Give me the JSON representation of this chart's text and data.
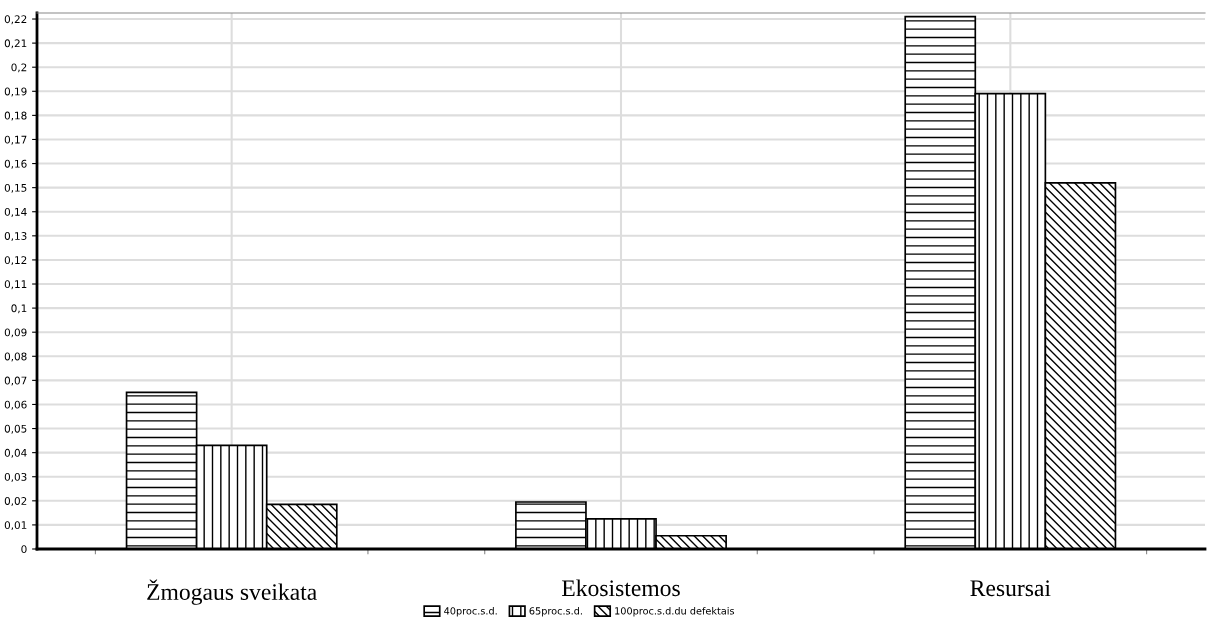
{
  "chart_data": {
    "type": "bar",
    "categories": [
      "Žmogaus sveikata",
      "Ekosistemos",
      "Resursai"
    ],
    "series": [
      {
        "name": "40proc.s.d.",
        "color": "#000000",
        "values": [
          0.065,
          0.0195,
          0.221
        ]
      },
      {
        "name": "65proc.s.d.",
        "color": "#000000",
        "values": [
          0.043,
          0.0125,
          0.189
        ]
      },
      {
        "name": "100proc.s.d.du defektais",
        "color": "#000000",
        "values": [
          0.0185,
          0.0055,
          0.152
        ]
      }
    ],
    "ylim": [
      0,
      0.2225
    ],
    "yticks": [
      {
        "value": 0,
        "label": "0"
      },
      {
        "value": 0.01,
        "label": "0,01"
      },
      {
        "value": 0.02,
        "label": "0,02"
      },
      {
        "value": 0.03,
        "label": "0,03"
      },
      {
        "value": 0.04,
        "label": "0,04"
      },
      {
        "value": 0.05,
        "label": "0,05"
      },
      {
        "value": 0.06,
        "label": "0,06"
      },
      {
        "value": 0.07,
        "label": "0,07"
      },
      {
        "value": 0.08,
        "label": "0,08"
      },
      {
        "value": 0.09,
        "label": "0,09"
      },
      {
        "value": 0.1,
        "label": "0,1"
      },
      {
        "value": 0.11,
        "label": "0,11"
      },
      {
        "value": 0.12,
        "label": "0,12"
      },
      {
        "value": 0.13,
        "label": "0,13"
      },
      {
        "value": 0.14,
        "label": "0,14"
      },
      {
        "value": 0.15,
        "label": "0,15"
      },
      {
        "value": 0.16,
        "label": "0,16"
      },
      {
        "value": 0.17,
        "label": "0,17"
      },
      {
        "value": 0.18,
        "label": "0,18"
      },
      {
        "value": 0.19,
        "label": "0,19"
      },
      {
        "value": 0.2,
        "label": "0,2"
      },
      {
        "value": 0.21,
        "label": "0,21"
      },
      {
        "value": 0.22,
        "label": "0,22"
      }
    ],
    "grid": true,
    "legend": "bottom"
  }
}
